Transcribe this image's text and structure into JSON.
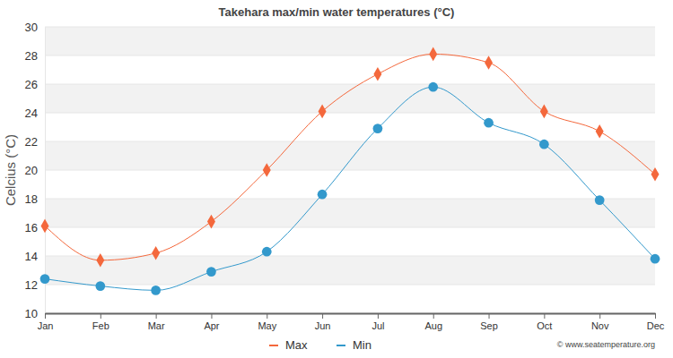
{
  "chart_data": {
    "type": "line",
    "title": "Takehara max/min water temperatures (°C)",
    "y_label": "Celcius (°C)",
    "annotations": [
      "© www.seatemperature.org"
    ],
    "categories": [
      "Jan",
      "Feb",
      "Mar",
      "Apr",
      "May",
      "Jun",
      "Jul",
      "Aug",
      "Sep",
      "Oct",
      "Nov",
      "Dec"
    ],
    "series": [
      {
        "name": "Max",
        "color": "#f4683c",
        "marker": "diamond",
        "values": [
          16.1,
          13.7,
          14.2,
          16.4,
          20.0,
          24.1,
          26.7,
          28.1,
          27.5,
          24.1,
          22.7,
          19.7
        ]
      },
      {
        "name": "Min",
        "color": "#3399cc",
        "marker": "circle",
        "values": [
          12.4,
          11.9,
          11.6,
          12.9,
          14.3,
          18.3,
          22.9,
          25.8,
          23.3,
          21.8,
          17.9,
          13.8
        ]
      }
    ],
    "ylim": [
      10,
      30
    ],
    "yticks": [
      10,
      12,
      14,
      16,
      18,
      20,
      22,
      24,
      26,
      28,
      30
    ],
    "grid": true,
    "legend": "bottom"
  }
}
